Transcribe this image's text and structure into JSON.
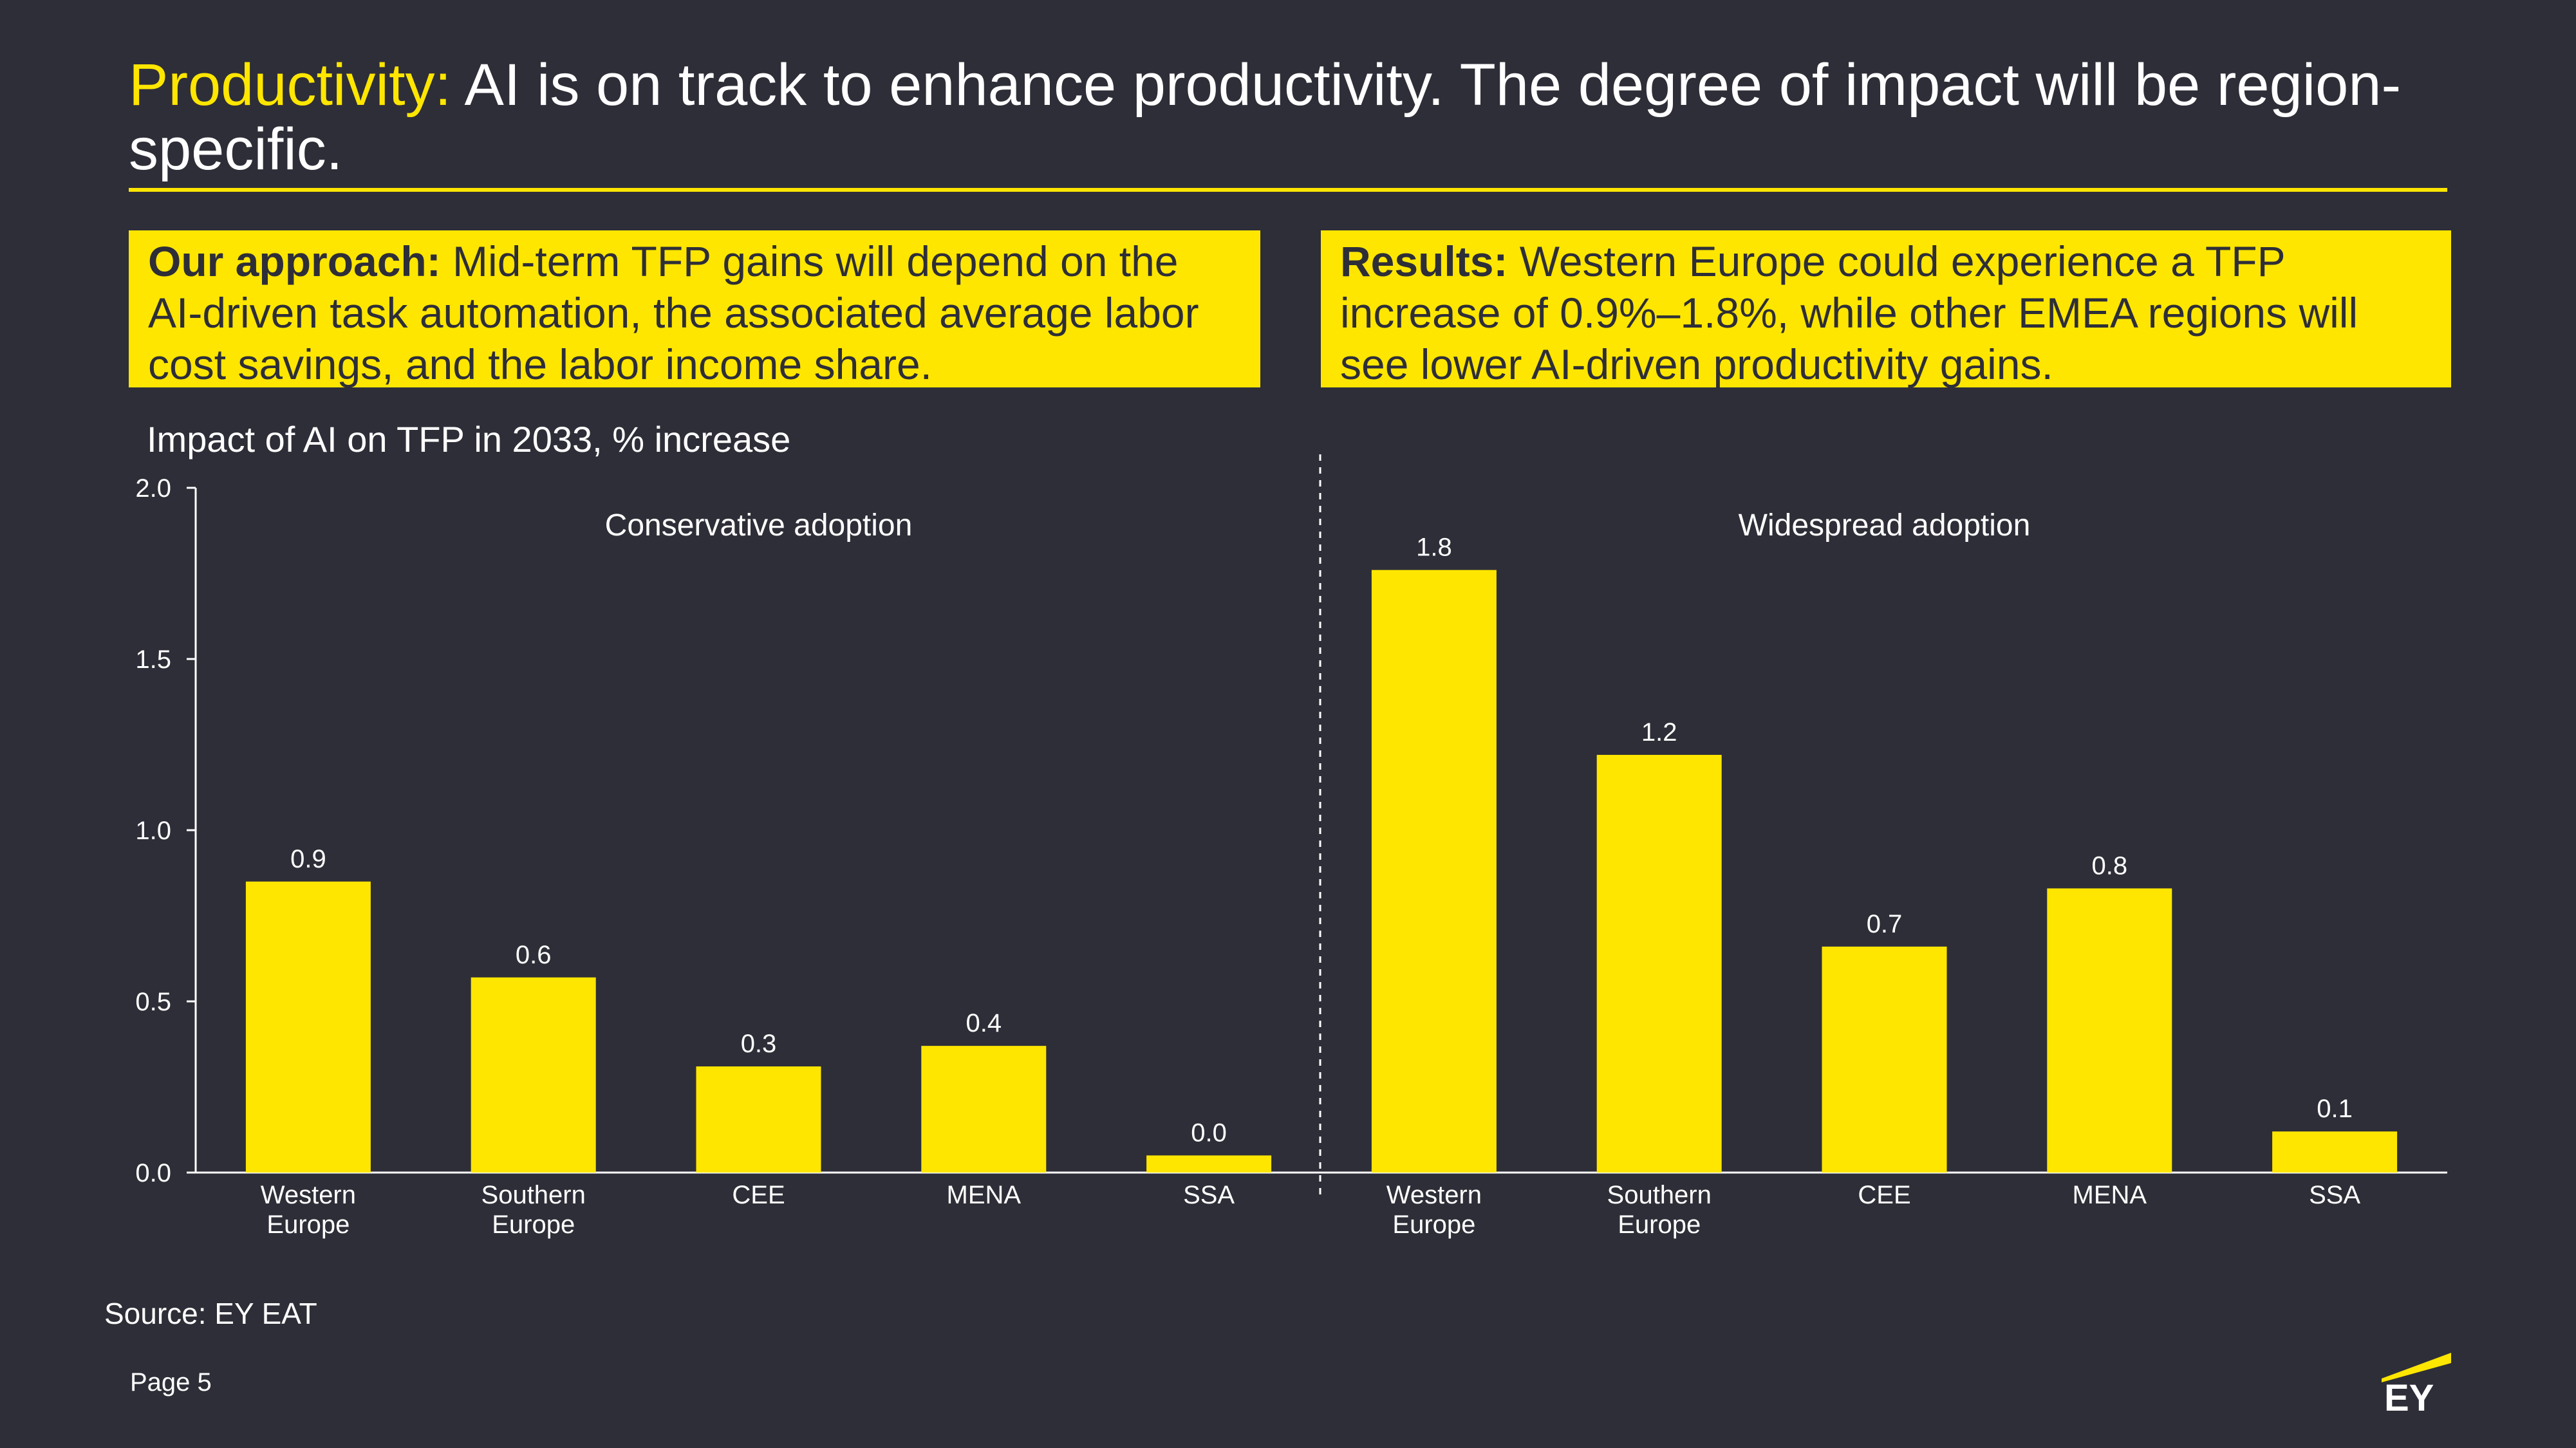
{
  "header": {
    "title_highlight": "Productivity:",
    "title_rest": " AI is on track to enhance productivity. The degree of impact will be region-specific."
  },
  "approach": {
    "label": "Our approach:",
    "text": " Mid-term TFP gains will depend on the AI-driven task automation, the associated average labor cost savings, and the labor income share."
  },
  "results": {
    "label": "Results:",
    "text": " Western Europe could experience a TFP increase of 0.9%–1.8%, while other EMEA regions will see lower AI-driven productivity gains."
  },
  "chart_data": {
    "type": "bar",
    "title": "Impact of AI on TFP in 2033, % increase",
    "ylim": [
      0,
      2.0
    ],
    "yticks": [
      "0.0",
      "0.5",
      "1.0",
      "1.5",
      "2.0"
    ],
    "grid": false,
    "groups": [
      {
        "name": "Conservative adoption",
        "categories": [
          "Western Europe",
          "Southern Europe",
          "CEE",
          "MENA",
          "SSA"
        ],
        "values": [
          0.85,
          0.57,
          0.31,
          0.37,
          0.05
        ],
        "labels": [
          "0.9",
          "0.6",
          "0.3",
          "0.4",
          "0.0"
        ]
      },
      {
        "name": "Widespread adoption",
        "categories": [
          "Western Europe",
          "Southern Europe",
          "CEE",
          "MENA",
          "SSA"
        ],
        "values": [
          1.76,
          1.22,
          0.66,
          0.83,
          0.12
        ],
        "labels": [
          "1.8",
          "1.2",
          "0.7",
          "0.8",
          "0.1"
        ]
      }
    ]
  },
  "footer": {
    "source": "Source: EY EAT",
    "page": "Page 5",
    "logo_text": "EY"
  },
  "colors": {
    "background": "#2e2e38",
    "accent": "#ffe600",
    "text": "#ffffff"
  }
}
